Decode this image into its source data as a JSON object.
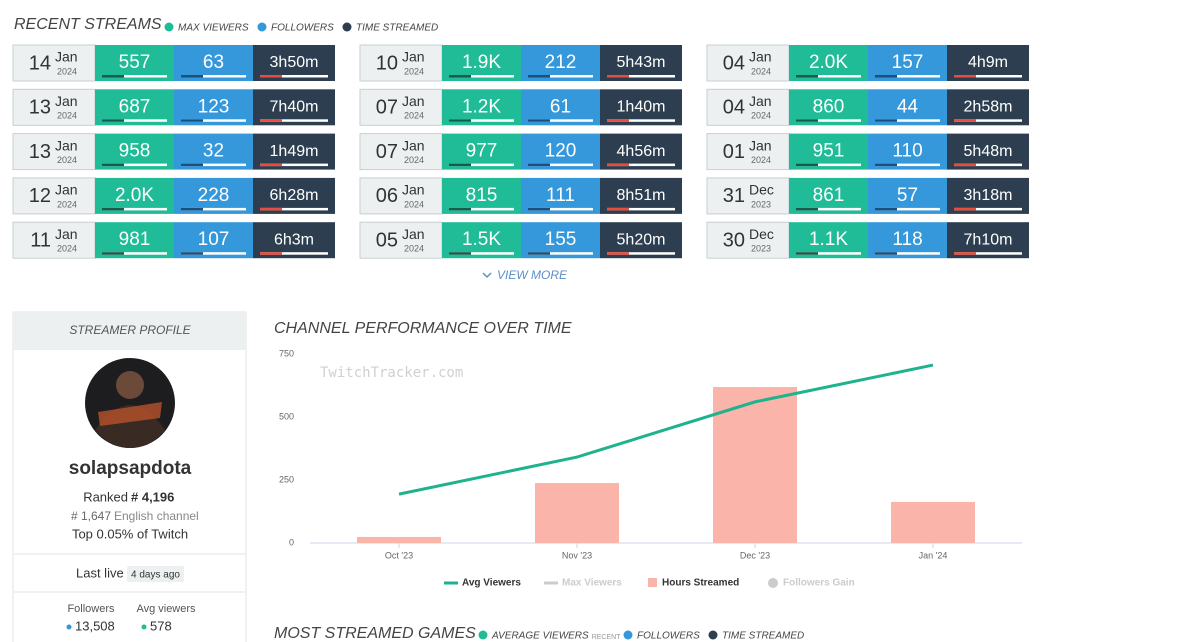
{
  "recent_streams": {
    "title": "RECENT STREAMS",
    "legend": [
      {
        "label": "MAX VIEWERS",
        "color": "#1fbc97"
      },
      {
        "label": "FOLLOWERS",
        "color": "#3498db"
      },
      {
        "label": "TIME STREAMED",
        "color": "#2c3e50"
      }
    ],
    "streams": [
      {
        "day": "14",
        "month": "Jan",
        "year": "2024",
        "max_viewers": "557",
        "followers": "63",
        "time": "3h50m"
      },
      {
        "day": "13",
        "month": "Jan",
        "year": "2024",
        "max_viewers": "687",
        "followers": "123",
        "time": "7h40m"
      },
      {
        "day": "13",
        "month": "Jan",
        "year": "2024",
        "max_viewers": "958",
        "followers": "32",
        "time": "1h49m"
      },
      {
        "day": "12",
        "month": "Jan",
        "year": "2024",
        "max_viewers": "2.0K",
        "followers": "228",
        "time": "6h28m"
      },
      {
        "day": "11",
        "month": "Jan",
        "year": "2024",
        "max_viewers": "981",
        "followers": "107",
        "time": "6h3m"
      },
      {
        "day": "10",
        "month": "Jan",
        "year": "2024",
        "max_viewers": "1.9K",
        "followers": "212",
        "time": "5h43m"
      },
      {
        "day": "07",
        "month": "Jan",
        "year": "2024",
        "max_viewers": "1.2K",
        "followers": "61",
        "time": "1h40m"
      },
      {
        "day": "07",
        "month": "Jan",
        "year": "2024",
        "max_viewers": "977",
        "followers": "120",
        "time": "4h56m"
      },
      {
        "day": "06",
        "month": "Jan",
        "year": "2024",
        "max_viewers": "815",
        "followers": "111",
        "time": "8h51m"
      },
      {
        "day": "05",
        "month": "Jan",
        "year": "2024",
        "max_viewers": "1.5K",
        "followers": "155",
        "time": "5h20m"
      },
      {
        "day": "04",
        "month": "Jan",
        "year": "2024",
        "max_viewers": "2.0K",
        "followers": "157",
        "time": "4h9m"
      },
      {
        "day": "04",
        "month": "Jan",
        "year": "2024",
        "max_viewers": "860",
        "followers": "44",
        "time": "2h58m"
      },
      {
        "day": "01",
        "month": "Jan",
        "year": "2024",
        "max_viewers": "951",
        "followers": "110",
        "time": "5h48m"
      },
      {
        "day": "31",
        "month": "Dec",
        "year": "2023",
        "max_viewers": "861",
        "followers": "57",
        "time": "3h18m"
      },
      {
        "day": "30",
        "month": "Dec",
        "year": "2023",
        "max_viewers": "1.1K",
        "followers": "118",
        "time": "7h10m"
      }
    ],
    "view_more": "VIEW MORE"
  },
  "profile": {
    "header": "STREAMER PROFILE",
    "name": "solapsapdota",
    "rank_label": "Ranked",
    "rank": "# 4,196",
    "lang_rank": "# 1,647",
    "lang_label": "English channel",
    "top": "Top 0.05% of Twitch",
    "last_live_label": "Last live",
    "last_live": "4 days ago",
    "stats": [
      {
        "label": "Followers",
        "value": "13,508",
        "color": "#3498db"
      },
      {
        "label": "Avg viewers",
        "value": "578",
        "color": "#1fbc97"
      }
    ]
  },
  "chart_data": {
    "type": "combo",
    "title": "CHANNEL PERFORMANCE OVER TIME",
    "watermark": "TwitchTracker.com",
    "categories": [
      "Oct '23",
      "Nov '23",
      "Dec '23",
      "Jan '24"
    ],
    "ylim": [
      0,
      750
    ],
    "yticks": [
      0,
      250,
      500,
      750
    ],
    "series": [
      {
        "name": "Avg Viewers",
        "type": "line",
        "color": "#1fb28f",
        "values": [
          194,
          341,
          560,
          706
        ]
      },
      {
        "name": "Max Viewers",
        "type": "line",
        "color": "#cccccc",
        "visible": false
      },
      {
        "name": "Hours Streamed",
        "type": "bar",
        "color": "#fbb4aa",
        "values": [
          24,
          238,
          619,
          163
        ]
      },
      {
        "name": "Followers Gain",
        "type": "scatter",
        "color": "#cccccc",
        "visible": false
      }
    ]
  },
  "games": {
    "title": "MOST STREAMED GAMES",
    "legend": [
      {
        "label": "AVERAGE VIEWERS",
        "note": "RECENT",
        "color": "#1fbc97"
      },
      {
        "label": "FOLLOWERS",
        "color": "#3498db"
      },
      {
        "label": "TIME STREAMED",
        "color": "#2c3e50"
      }
    ]
  }
}
